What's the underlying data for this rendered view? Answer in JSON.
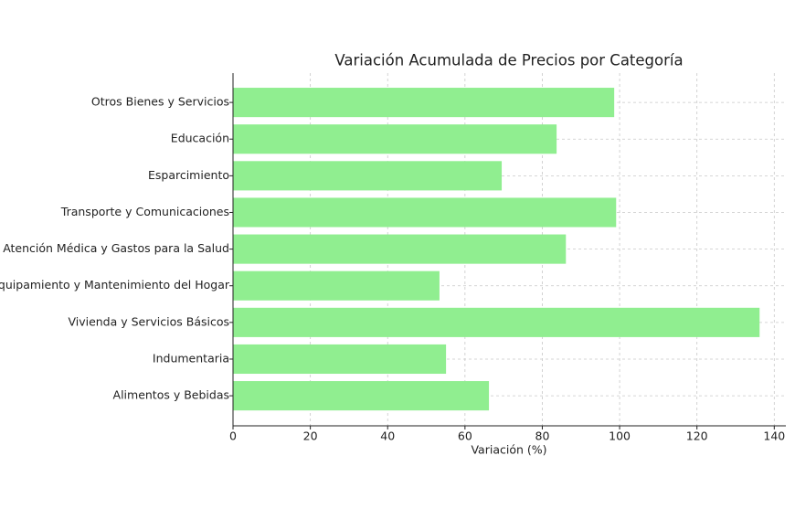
{
  "chart_data": {
    "type": "barh",
    "title": "Variación Acumulada de Precios por Categoría",
    "xlabel": "Variación (%)",
    "categories": [
      "Alimentos y Bebidas",
      "Indumentaria",
      "Vivienda y Servicios Básicos",
      "Equipamiento y Mantenimiento del Hogar",
      "Atención Médica y Gastos para la Salud",
      "Transporte y Comunicaciones",
      "Esparcimiento",
      "Educación",
      "Otros Bienes y Servicios"
    ],
    "values": [
      66.2,
      55.1,
      136.2,
      53.4,
      86.1,
      99.1,
      69.5,
      83.7,
      98.6
    ],
    "color": "#90ee90",
    "xlim": [
      0,
      143
    ],
    "xticks": [
      0,
      20,
      40,
      60,
      80,
      100,
      120,
      140
    ],
    "grid": true
  }
}
